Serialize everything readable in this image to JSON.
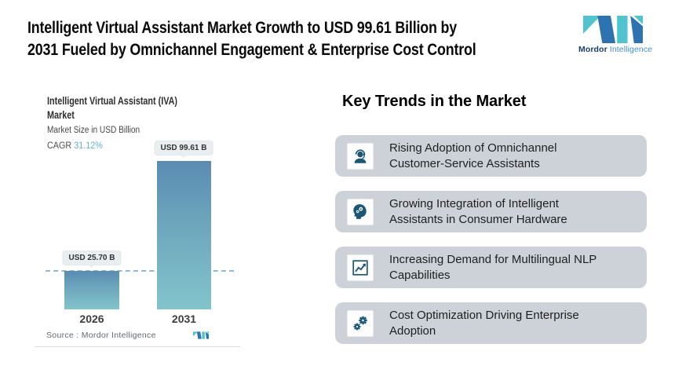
{
  "header": {
    "title_lines": [
      "Intelligent Virtual Assistant Market Growth to USD 99.61 Billion by",
      "2031 Fueled by Omnichannel Engagement & Enterprise Cost Control"
    ]
  },
  "brand": {
    "name_primary": "Mordor",
    "name_secondary": "Intelligence",
    "teal": "#4fc4cf",
    "blue": "#2d73b2"
  },
  "chart": {
    "title_lines": [
      "Intelligent Virtual Assistant (IVA)",
      "Market"
    ],
    "subtitle": "Market Size in USD Billion",
    "cagr_label": "CAGR",
    "cagr_value": "31.12%",
    "cagr_value_color": "#5fb0d6",
    "source": "Source :  Mordor Intelligence",
    "bar_gradient_top": "#5a8cb3",
    "bar_gradient_bottom": "#82c4cb",
    "reference_line_color": "#8fb9da"
  },
  "chart_data": {
    "type": "bar",
    "title": "Intelligent Virtual Assistant (IVA) Market",
    "subtitle": "Market Size in USD Billion",
    "cagr_percent": 31.12,
    "categories": [
      "2026",
      "2031"
    ],
    "values": [
      25.7,
      99.61
    ],
    "bar_labels": [
      "USD 25.70 B",
      "USD 99.61 B"
    ],
    "unit": "USD Billion",
    "ylim": [
      0,
      99.61
    ],
    "grid": false,
    "legend": "none",
    "annotations": [
      "dashed horizontal reference line at the 2026 value"
    ],
    "source": "Mordor Intelligence"
  },
  "trends": {
    "heading": "Key Trends in the Market",
    "card_bg": "#cdd2d9",
    "icon_color": "#1b5878",
    "items": [
      {
        "icon": "support-agent-icon",
        "lines": [
          "Rising Adoption of Omnichannel",
          "Customer-Service Assistants"
        ]
      },
      {
        "icon": "ai-head-icon",
        "lines": [
          "Growing Integration of Intelligent",
          "Assistants in Consumer Hardware"
        ]
      },
      {
        "icon": "growth-chart-icon",
        "lines": [
          "Increasing Demand for Multilingual NLP",
          "Capabilities"
        ]
      },
      {
        "icon": "gears-icon",
        "lines": [
          "Cost Optimization Driving Enterprise",
          "Adoption"
        ]
      }
    ]
  }
}
